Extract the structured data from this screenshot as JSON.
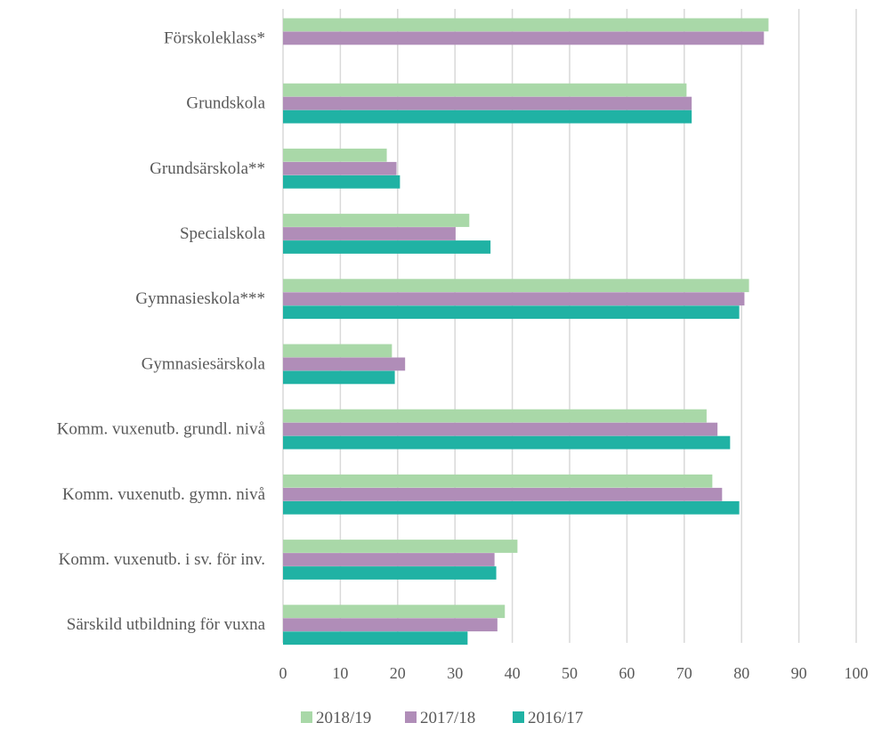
{
  "chart_data": {
    "type": "bar",
    "orientation": "horizontal",
    "categories": [
      "Förskoleklass*",
      "Grundskola",
      "Grundsärskola**",
      "Specialskola",
      "Gymnasieskola***",
      "Gymnasiesärskola",
      "Komm. vuxenutb. grundl. nivå",
      "Komm. vuxenutb. gymn. nivå",
      "Komm. vuxenutb. i sv. för inv.",
      "Särskild utbildning för vuxna"
    ],
    "series": [
      {
        "name": "2018/19",
        "color": "#a9d8a8",
        "values": [
          84.7,
          70.4,
          18.1,
          32.5,
          81.3,
          19.0,
          73.9,
          74.9,
          40.9,
          38.7
        ]
      },
      {
        "name": "2017/18",
        "color": "#b08db8",
        "values": [
          83.9,
          71.3,
          19.8,
          30.1,
          80.5,
          21.3,
          75.8,
          76.6,
          36.9,
          37.4
        ]
      },
      {
        "name": "2016/17",
        "color": "#20b2a4",
        "values": [
          null,
          71.3,
          20.4,
          36.2,
          79.6,
          19.5,
          78.0,
          79.6,
          37.2,
          32.2
        ]
      }
    ],
    "xlim": [
      0,
      100
    ],
    "xticks": [
      0,
      10,
      20,
      30,
      40,
      50,
      60,
      70,
      80,
      90,
      100
    ],
    "grid": "vertical",
    "legend": "bottom",
    "title": "",
    "xlabel": "",
    "ylabel": ""
  }
}
